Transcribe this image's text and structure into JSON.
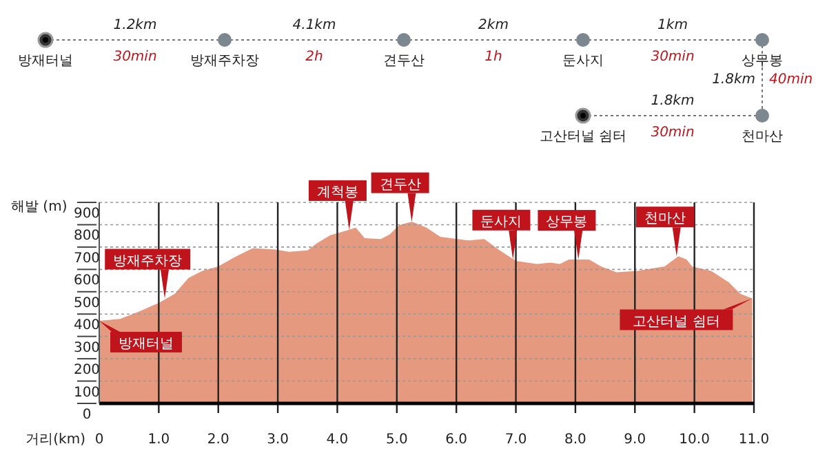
{
  "chart_data": [
    {
      "type": "other",
      "annotations": [
        "방재터널",
        "1.2km",
        "30min",
        "방재주차장",
        "4.1km",
        "2h",
        "견두산",
        "2km",
        "1h",
        "둔사지",
        "1km",
        "30min",
        "상무봉",
        "1.8km",
        "40min",
        "천마산",
        "1.8km",
        "30min",
        "고산터널 쉼터"
      ]
    },
    {
      "type": "area",
      "xlabel": "거리(km)",
      "ylabel": "해발 (m)",
      "color": "#e59a7f",
      "grid": true,
      "xlim": [
        0,
        11
      ],
      "ylim": [
        0,
        900
      ],
      "xticks": [
        {
          "value": 0,
          "label": "0"
        },
        {
          "value": 1,
          "label": "1.0"
        },
        {
          "value": 2,
          "label": "2.0"
        },
        {
          "value": 3,
          "label": "3.0"
        },
        {
          "value": 4,
          "label": "4.0"
        },
        {
          "value": 5,
          "label": "5.0"
        },
        {
          "value": 6,
          "label": "6.0"
        },
        {
          "value": 7,
          "label": "7.0"
        },
        {
          "value": 8,
          "label": "8.0"
        },
        {
          "value": 9,
          "label": "9.0"
        },
        {
          "value": 10,
          "label": "10.0"
        },
        {
          "value": 11,
          "label": "11.0"
        }
      ],
      "yticks": [
        0,
        100,
        200,
        300,
        400,
        500,
        600,
        700,
        800,
        900
      ],
      "x": [
        0,
        0.35,
        0.65,
        1.0,
        1.27,
        1.5,
        1.73,
        2.0,
        2.27,
        2.58,
        2.96,
        3.19,
        3.5,
        3.65,
        3.88,
        4.19,
        4.31,
        4.46,
        4.73,
        4.88,
        5.04,
        5.23,
        5.27,
        5.5,
        5.73,
        6.2,
        6.47,
        6.73,
        7.0,
        7.35,
        7.58,
        7.74,
        7.89,
        8.23,
        8.43,
        8.69,
        9.04,
        9.5,
        9.73,
        9.87,
        9.96,
        10.28,
        10.58,
        10.77,
        10.97
      ],
      "values": [
        370,
        378,
        409,
        450,
        491,
        562,
        593,
        613,
        654,
        695,
        689,
        679,
        685,
        716,
        753,
        777,
        787,
        740,
        736,
        757,
        798,
        812,
        812,
        787,
        746,
        730,
        736,
        685,
        638,
        624,
        630,
        624,
        644,
        644,
        613,
        587,
        593,
        613,
        659,
        644,
        613,
        593,
        542,
        491,
        470
      ],
      "annotations": [
        {
          "text": "방재터널",
          "x": 0,
          "y": 370
        },
        {
          "text": "방재주차장",
          "x": 1.1,
          "y": 470
        },
        {
          "text": "계척봉",
          "x": 4.2,
          "y": 777
        },
        {
          "text": "견두산",
          "x": 5.25,
          "y": 812
        },
        {
          "text": "둔사지",
          "x": 6.95,
          "y": 645
        },
        {
          "text": "상무봉",
          "x": 8.05,
          "y": 644
        },
        {
          "text": "천마산",
          "x": 9.7,
          "y": 659
        },
        {
          "text": "고산터널 쉼터",
          "x": 10.97,
          "y": 470
        }
      ]
    }
  ]
}
